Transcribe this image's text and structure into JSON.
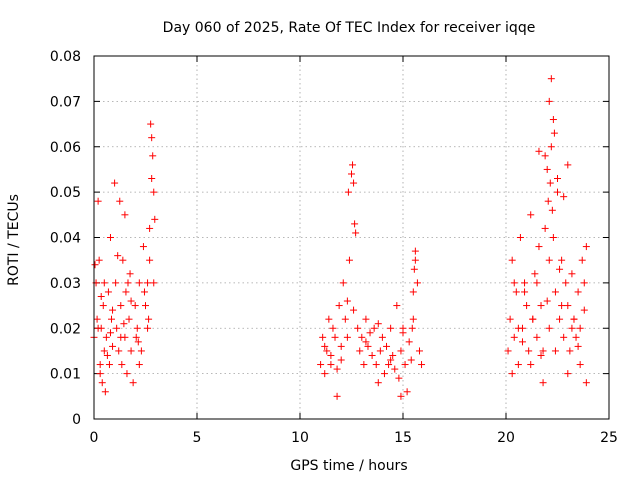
{
  "chart_data": {
    "type": "scatter",
    "title": "Day 060 of 2025, Rate Of TEC Index for receiver iqqe",
    "xlabel": "GPS time / hours",
    "ylabel": "ROTI / TECUs",
    "xlim": [
      0,
      25
    ],
    "ylim": [
      0,
      0.08
    ],
    "x_ticks": [
      0,
      5,
      10,
      15,
      20,
      25
    ],
    "x_tick_labels": [
      "0",
      "5",
      "10",
      "15",
      "20",
      "25"
    ],
    "y_ticks": [
      0,
      0.01,
      0.02,
      0.03,
      0.04,
      0.05,
      0.06,
      0.07,
      0.08
    ],
    "y_tick_labels": [
      "0",
      "0.01",
      "0.02",
      "0.03",
      "0.04",
      "0.05",
      "0.06",
      "0.07",
      "0.08"
    ],
    "grid": true,
    "marker": "+",
    "series_color": "#ff0000",
    "series": [
      {
        "name": "ROTI",
        "x": [
          0.0,
          0.1,
          0.15,
          0.2,
          0.25,
          0.3,
          0.35,
          0.4,
          0.45,
          0.5,
          0.55,
          0.6,
          0.7,
          0.75,
          0.8,
          0.85,
          0.9,
          1.0,
          1.05,
          1.1,
          1.2,
          1.25,
          1.3,
          1.35,
          1.4,
          1.5,
          1.55,
          1.6,
          1.7,
          1.75,
          1.8,
          1.9,
          2.0,
          2.05,
          2.1,
          2.2,
          2.3,
          2.4,
          2.5,
          2.6,
          2.7,
          2.75,
          2.8,
          2.85,
          2.9,
          2.95,
          0.2,
          0.5,
          0.9,
          1.3,
          1.8,
          2.2,
          2.6,
          0.05,
          0.35,
          0.65,
          1.15,
          1.45,
          1.65,
          2.15,
          2.45,
          2.65,
          0.3,
          0.8,
          1.5,
          2.9,
          2.8,
          2.7,
          11.0,
          11.1,
          11.2,
          11.3,
          11.4,
          11.5,
          11.6,
          11.7,
          11.8,
          11.9,
          12.0,
          12.1,
          12.2,
          12.3,
          12.4,
          12.5,
          12.55,
          12.6,
          12.65,
          12.7,
          12.8,
          12.9,
          13.0,
          13.1,
          13.2,
          13.3,
          13.4,
          13.5,
          13.6,
          13.7,
          13.8,
          13.9,
          14.0,
          14.1,
          14.2,
          14.3,
          14.4,
          14.5,
          14.6,
          14.7,
          14.8,
          14.9,
          15.0,
          15.1,
          15.2,
          15.3,
          15.4,
          15.5,
          15.6,
          15.7,
          15.8,
          15.9,
          11.5,
          12.0,
          12.3,
          12.6,
          13.2,
          13.8,
          14.4,
          15.0,
          15.5,
          15.55,
          15.6,
          11.2,
          11.8,
          12.35,
          14.9,
          15.45,
          20.1,
          20.2,
          20.3,
          20.4,
          20.5,
          20.6,
          20.7,
          20.8,
          20.9,
          21.0,
          21.1,
          21.2,
          21.3,
          21.4,
          21.5,
          21.6,
          21.7,
          21.8,
          21.9,
          22.0,
          22.05,
          22.1,
          22.15,
          22.2,
          22.25,
          22.3,
          22.4,
          22.5,
          22.6,
          22.7,
          22.8,
          22.9,
          23.0,
          23.1,
          23.2,
          23.3,
          23.4,
          23.5,
          23.6,
          23.7,
          23.8,
          23.9,
          20.3,
          20.6,
          20.9,
          21.2,
          21.5,
          21.8,
          22.1,
          22.4,
          22.7,
          23.0,
          23.3,
          23.6,
          23.9,
          20.4,
          20.8,
          21.3,
          21.7,
          22.0,
          22.6,
          23.2,
          23.5,
          23.8,
          22.2,
          22.3,
          22.1,
          22.35,
          21.9,
          22.5,
          23.0,
          21.6,
          22.8
        ],
        "y": [
          0.018,
          0.03,
          0.022,
          0.048,
          0.035,
          0.012,
          0.02,
          0.008,
          0.025,
          0.015,
          0.006,
          0.018,
          0.028,
          0.012,
          0.04,
          0.022,
          0.016,
          0.052,
          0.03,
          0.02,
          0.015,
          0.048,
          0.025,
          0.012,
          0.035,
          0.018,
          0.028,
          0.01,
          0.022,
          0.032,
          0.015,
          0.008,
          0.025,
          0.018,
          0.02,
          0.03,
          0.015,
          0.038,
          0.025,
          0.02,
          0.042,
          0.065,
          0.053,
          0.058,
          0.05,
          0.044,
          0.02,
          0.03,
          0.024,
          0.018,
          0.026,
          0.012,
          0.03,
          0.034,
          0.027,
          0.014,
          0.036,
          0.021,
          0.03,
          0.017,
          0.028,
          0.022,
          0.01,
          0.019,
          0.045,
          0.03,
          0.062,
          0.035,
          0.012,
          0.018,
          0.01,
          0.015,
          0.022,
          0.012,
          0.02,
          0.018,
          0.005,
          0.025,
          0.016,
          0.03,
          0.022,
          0.018,
          0.035,
          0.054,
          0.056,
          0.052,
          0.043,
          0.041,
          0.02,
          0.015,
          0.018,
          0.012,
          0.022,
          0.016,
          0.019,
          0.014,
          0.02,
          0.012,
          0.008,
          0.015,
          0.018,
          0.01,
          0.016,
          0.012,
          0.02,
          0.014,
          0.011,
          0.025,
          0.009,
          0.015,
          0.02,
          0.012,
          0.006,
          0.017,
          0.013,
          0.022,
          0.035,
          0.03,
          0.015,
          0.012,
          0.014,
          0.013,
          0.026,
          0.024,
          0.017,
          0.021,
          0.013,
          0.019,
          0.028,
          0.033,
          0.037,
          0.016,
          0.011,
          0.05,
          0.005,
          0.02,
          0.015,
          0.022,
          0.035,
          0.018,
          0.028,
          0.012,
          0.04,
          0.02,
          0.03,
          0.025,
          0.015,
          0.045,
          0.022,
          0.032,
          0.018,
          0.038,
          0.025,
          0.015,
          0.042,
          0.055,
          0.048,
          0.035,
          0.052,
          0.06,
          0.046,
          0.04,
          0.028,
          0.05,
          0.022,
          0.035,
          0.018,
          0.03,
          0.025,
          0.015,
          0.032,
          0.022,
          0.018,
          0.028,
          0.02,
          0.035,
          0.03,
          0.038,
          0.01,
          0.02,
          0.028,
          0.012,
          0.03,
          0.008,
          0.02,
          0.015,
          0.025,
          0.01,
          0.022,
          0.012,
          0.008,
          0.03,
          0.017,
          0.022,
          0.014,
          0.026,
          0.033,
          0.02,
          0.016,
          0.024,
          0.075,
          0.066,
          0.07,
          0.063,
          0.058,
          0.053,
          0.056,
          0.059,
          0.049
        ]
      }
    ]
  }
}
